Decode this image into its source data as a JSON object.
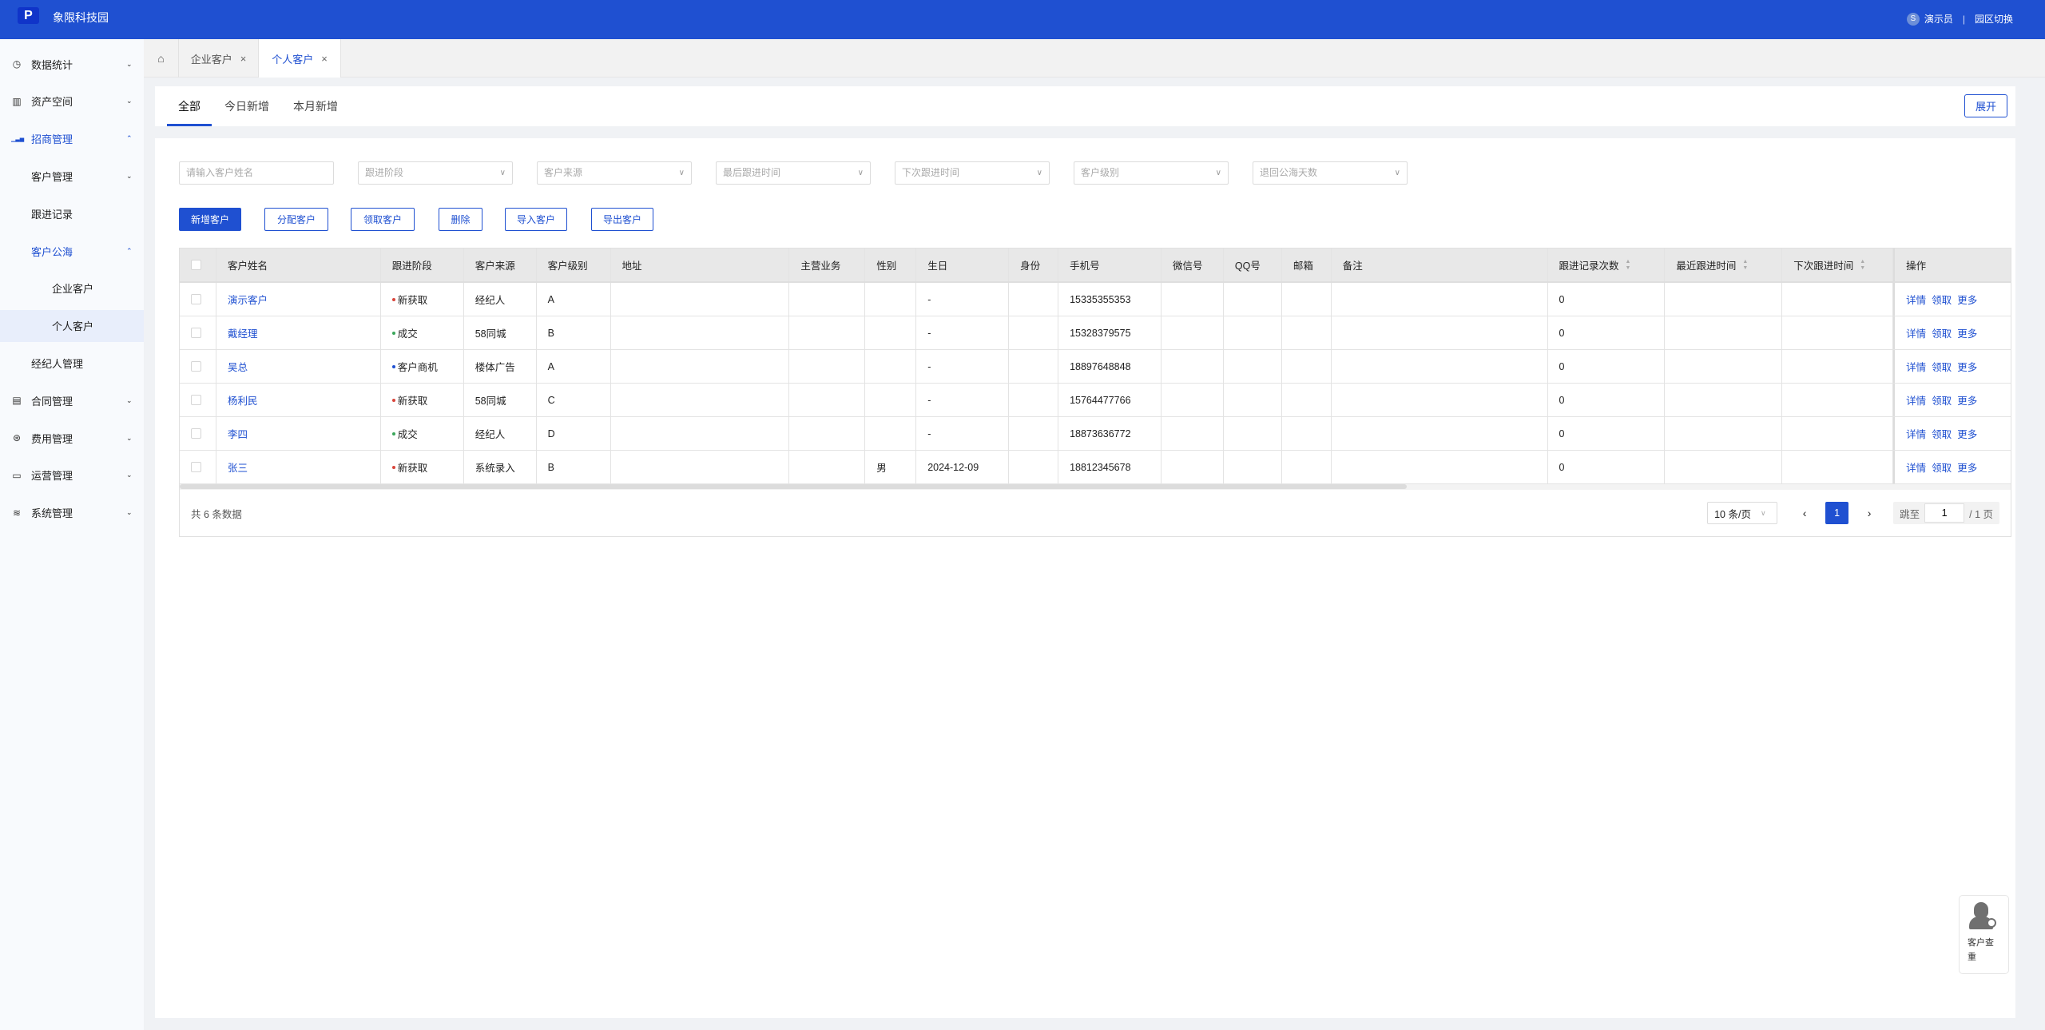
{
  "header": {
    "logo_letter": "P",
    "app_title": "象限科技园",
    "user_avatar": "S",
    "user_name": "演示员",
    "separator": "|",
    "switch_park": "园区切换",
    "accent": "#1f50d1"
  },
  "sidebar": {
    "items": [
      {
        "label": "数据统计",
        "icon": "pie-clock-icon",
        "level": 0,
        "chevron": "⌄"
      },
      {
        "label": "资产空间",
        "icon": "building-icon",
        "level": 0,
        "chevron": "⌄"
      },
      {
        "label": "招商管理",
        "icon": "bar-chart-icon",
        "level": 0,
        "chevron": "⌃",
        "active": true
      },
      {
        "label": "客户管理",
        "level": 1,
        "chevron": "⌄"
      },
      {
        "label": "跟进记录",
        "level": 1
      },
      {
        "label": "客户公海",
        "level": 1,
        "chevron": "⌃",
        "active": true
      },
      {
        "label": "企业客户",
        "level": 2
      },
      {
        "label": "个人客户",
        "level": 2,
        "selected": true
      },
      {
        "label": "经纪人管理",
        "level": 1
      },
      {
        "label": "合同管理",
        "icon": "document-icon",
        "level": 0,
        "chevron": "⌄"
      },
      {
        "label": "费用管理",
        "icon": "yen-circle-icon",
        "level": 0,
        "chevron": "⌄"
      },
      {
        "label": "运营管理",
        "icon": "monitor-icon",
        "level": 0,
        "chevron": "⌄"
      },
      {
        "label": "系统管理",
        "icon": "layers-icon",
        "level": 0,
        "chevron": "⌄"
      }
    ]
  },
  "page_tabs": [
    {
      "label": "企业客户",
      "close": "×"
    },
    {
      "label": "个人客户",
      "close": "×",
      "current": true
    }
  ],
  "sub_tabs": [
    "全部",
    "今日新增",
    "本月新增"
  ],
  "expand_label": "展开",
  "filters": [
    "请输入客户姓名",
    "跟进阶段",
    "客户来源",
    "最后跟进时间",
    "下次跟进时间",
    "客户级别",
    "退回公海天数"
  ],
  "actions": [
    "新增客户",
    "分配客户",
    "领取客户",
    "删除",
    "导入客户",
    "导出客户"
  ],
  "table": {
    "columns": [
      "客户姓名",
      "跟进阶段",
      "客户来源",
      "客户级别",
      "地址",
      "主营业务",
      "性别",
      "生日",
      "身份",
      "手机号",
      "微信号",
      "QQ号",
      "邮箱",
      "备注",
      "跟进记录次数",
      "最近跟进时间",
      "下次跟进时间",
      "操作"
    ],
    "sortable": [
      "跟进记录次数",
      "最近跟进时间",
      "下次跟进时间"
    ],
    "status_colors": {
      "新获取": "#d9453b",
      "成交": "#3aa65a",
      "客户商机": "#1f50d1"
    },
    "rows": [
      {
        "name": "演示客户",
        "stage": "新获取",
        "source": "经纪人",
        "level": "A",
        "address": "",
        "business": "",
        "gender": "",
        "birthday": "-",
        "identity": "",
        "phone": "15335355353",
        "wechat": "",
        "qq": "",
        "email": "",
        "remark": "",
        "follow_count": "0",
        "last_follow": "",
        "next_follow": ""
      },
      {
        "name": "戴经理",
        "stage": "成交",
        "source": "58同城",
        "level": "B",
        "address": "",
        "business": "",
        "gender": "",
        "birthday": "-",
        "identity": "",
        "phone": "15328379575",
        "wechat": "",
        "qq": "",
        "email": "",
        "remark": "",
        "follow_count": "0",
        "last_follow": "",
        "next_follow": ""
      },
      {
        "name": "吴总",
        "stage": "客户商机",
        "source": "楼体广告",
        "level": "A",
        "address": "",
        "business": "",
        "gender": "",
        "birthday": "-",
        "identity": "",
        "phone": "18897648848",
        "wechat": "",
        "qq": "",
        "email": "",
        "remark": "",
        "follow_count": "0",
        "last_follow": "",
        "next_follow": ""
      },
      {
        "name": "杨利民",
        "stage": "新获取",
        "source": "58同城",
        "level": "C",
        "address": "",
        "business": "",
        "gender": "",
        "birthday": "-",
        "identity": "",
        "phone": "15764477766",
        "wechat": "",
        "qq": "",
        "email": "",
        "remark": "",
        "follow_count": "0",
        "last_follow": "",
        "next_follow": ""
      },
      {
        "name": "李四",
        "stage": "成交",
        "source": "经纪人",
        "level": "D",
        "address": "",
        "business": "",
        "gender": "",
        "birthday": "-",
        "identity": "",
        "phone": "18873636772",
        "wechat": "",
        "qq": "",
        "email": "",
        "remark": "",
        "follow_count": "0",
        "last_follow": "",
        "next_follow": ""
      },
      {
        "name": "张三",
        "stage": "新获取",
        "source": "系统录入",
        "level": "B",
        "address": "",
        "business": "",
        "gender": "男",
        "birthday": "2024-12-09",
        "identity": "",
        "phone": "18812345678",
        "wechat": "",
        "qq": "",
        "email": "",
        "remark": "",
        "follow_count": "0",
        "last_follow": "",
        "next_follow": ""
      }
    ],
    "row_actions": [
      "详情",
      "领取",
      "更多"
    ]
  },
  "footer": {
    "total": "共 6 条数据",
    "page_size": "10 条/页",
    "prev": "‹",
    "current_page": "1",
    "next": "›",
    "jump_label": "跳至",
    "jump_value": "1",
    "total_pages": "/ 1 页"
  },
  "floating": {
    "label": "客户查重"
  }
}
